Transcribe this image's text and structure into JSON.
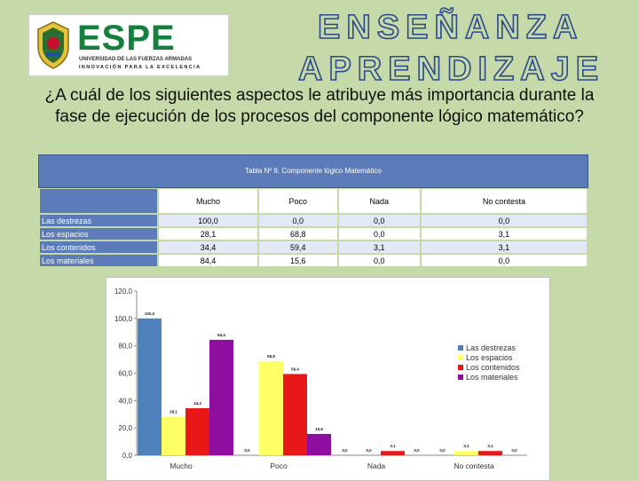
{
  "logo": {
    "name": "ESPE",
    "line1": "UNIVERSIDAD DE LAS FUERZAS ARMADAS",
    "line2": "INNOVACIÓN PARA LA EXCELENCIA"
  },
  "header": {
    "line1": "ENSEÑANZA",
    "line2": "APRENDIZAJE"
  },
  "question": "¿A cuál de los siguientes aspectos le atribuye más importancia durante la fase de ejecución de los procesos del componente lógico matemático?",
  "table": {
    "caption": "Tabla Nº 9. Componente lógico Matemático",
    "columns": [
      "Mucho",
      "Poco",
      "Nada",
      "No contesta"
    ],
    "rows": [
      {
        "label": "Las destrezas",
        "values": [
          "100,0",
          "0,0",
          "0,0",
          "0,0"
        ]
      },
      {
        "label": "Los espacios",
        "values": [
          "28,1",
          "68,8",
          "0,0",
          "3,1"
        ]
      },
      {
        "label": "Los contenidos",
        "values": [
          "34,4",
          "59,4",
          "3,1",
          "3,1"
        ]
      },
      {
        "label": "Los materiales",
        "values": [
          "84,4",
          "15,6",
          "0,0",
          "0,0"
        ]
      }
    ]
  },
  "chart_data": {
    "type": "bar",
    "categories": [
      "Mucho",
      "Poco",
      "Nada",
      "No contesta"
    ],
    "series": [
      {
        "name": "Las destrezas",
        "color": "#4f81bd",
        "values": [
          100.0,
          0.0,
          0.0,
          0.0
        ]
      },
      {
        "name": "Los espacios",
        "color": "#ffff66",
        "values": [
          28.1,
          68.8,
          0.0,
          3.1
        ]
      },
      {
        "name": "Los contenidos",
        "color": "#e81818",
        "values": [
          34.4,
          59.4,
          3.1,
          3.1
        ]
      },
      {
        "name": "Los materiales",
        "color": "#8e0ea0",
        "values": [
          84.4,
          15.6,
          0.0,
          0.0
        ]
      }
    ],
    "yticks": [
      "0,0",
      "20,0",
      "40,0",
      "60,0",
      "80,0",
      "100,0",
      "120,0"
    ],
    "ylim": [
      0,
      120
    ],
    "legend": "right",
    "grid": false,
    "data_labels": true
  }
}
